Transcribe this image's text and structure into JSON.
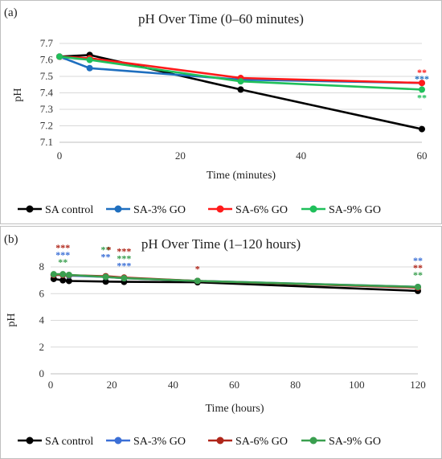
{
  "chart_data": [
    {
      "panel": "(a)",
      "type": "line",
      "title": "pH Over Time (0–60 minutes)",
      "xlabel": "Time (minutes)",
      "ylabel": "pH",
      "xlim": [
        0,
        60
      ],
      "ylim": [
        7.1,
        7.7
      ],
      "xticks": [
        0,
        20,
        40,
        60
      ],
      "yticks": [
        7.1,
        7.2,
        7.3,
        7.4,
        7.5,
        7.6,
        7.7
      ],
      "grid": "horizontal",
      "legend_position": "bottom",
      "series": [
        {
          "name": "SA control",
          "color": "#000000",
          "x": [
            0,
            5,
            30,
            60
          ],
          "y": [
            7.62,
            7.63,
            7.42,
            7.18
          ]
        },
        {
          "name": "SA-3% GO",
          "color": "#1f6fbf",
          "x": [
            0,
            5,
            30,
            60
          ],
          "y": [
            7.62,
            7.55,
            7.48,
            7.46
          ]
        },
        {
          "name": "SA-6% GO",
          "color": "#ff1a1a",
          "x": [
            0,
            5,
            30,
            60
          ],
          "y": [
            7.62,
            7.61,
            7.49,
            7.46
          ]
        },
        {
          "name": "SA-9% GO",
          "color": "#1fbf5a",
          "x": [
            0,
            5,
            30,
            60
          ],
          "y": [
            7.62,
            7.6,
            7.47,
            7.42
          ]
        }
      ],
      "annotations": [
        {
          "x": 60,
          "y": 7.46,
          "text": "**",
          "color": "#ff1a1a",
          "row": 0
        },
        {
          "x": 60,
          "y": 7.46,
          "text": "***",
          "color": "#1f6fbf",
          "row": 1
        },
        {
          "x": 60,
          "y": 7.42,
          "text": "**",
          "color": "#1fbf5a",
          "row": -1
        }
      ]
    },
    {
      "panel": "(b)",
      "type": "line",
      "title": "pH Over Time (1–120 hours)",
      "xlabel": "Time (hours)",
      "ylabel": "pH",
      "xlim": [
        0,
        120
      ],
      "ylim": [
        0,
        8
      ],
      "xticks": [
        0,
        20,
        40,
        60,
        80,
        100,
        120
      ],
      "yticks": [
        0,
        2,
        4,
        6,
        8
      ],
      "grid": "horizontal",
      "legend_position": "bottom",
      "series": [
        {
          "name": "SA control",
          "color": "#000000",
          "x": [
            1,
            4,
            6,
            18,
            24,
            48,
            120
          ],
          "y": [
            7.1,
            7.0,
            6.95,
            6.9,
            6.88,
            6.85,
            6.2
          ]
        },
        {
          "name": "SA-3% GO",
          "color": "#3b6fd6",
          "x": [
            1,
            4,
            6,
            18,
            24,
            48,
            120
          ],
          "y": [
            7.4,
            7.4,
            7.35,
            7.25,
            7.15,
            6.95,
            6.5
          ]
        },
        {
          "name": "SA-6% GO",
          "color": "#b0261a",
          "x": [
            1,
            4,
            6,
            18,
            24,
            48,
            120
          ],
          "y": [
            7.4,
            7.4,
            7.38,
            7.3,
            7.2,
            6.95,
            6.45
          ]
        },
        {
          "name": "SA-9% GO",
          "color": "#3a9f4f",
          "x": [
            1,
            4,
            6,
            18,
            24,
            48,
            120
          ],
          "y": [
            7.45,
            7.45,
            7.4,
            7.25,
            7.15,
            6.95,
            6.5
          ]
        }
      ],
      "annotations": [
        {
          "x": 4,
          "y": 7.45,
          "text": "***",
          "color": "#b0261a",
          "row": 3
        },
        {
          "x": 4,
          "y": 7.45,
          "text": "***",
          "color": "#3b6fd6",
          "row": 2
        },
        {
          "x": 4,
          "y": 7.45,
          "text": "**",
          "color": "#3a9f4f",
          "row": 1
        },
        {
          "x": 18,
          "y": 7.3,
          "text": "**",
          "color": "#3a9f4f",
          "row": 3
        },
        {
          "x": 18,
          "y": 7.3,
          "text": "*",
          "color": "#b0261a",
          "row": 3,
          "dx": 4
        },
        {
          "x": 18,
          "y": 7.3,
          "text": "**",
          "color": "#3b6fd6",
          "row": 2
        },
        {
          "x": 24,
          "y": 7.2,
          "text": "***",
          "color": "#b0261a",
          "row": 3
        },
        {
          "x": 24,
          "y": 7.2,
          "text": "***",
          "color": "#3a9f4f",
          "row": 2
        },
        {
          "x": 24,
          "y": 7.2,
          "text": "***",
          "color": "#3b6fd6",
          "row": 1
        },
        {
          "x": 48,
          "y": 6.95,
          "text": "*",
          "color": "#b0261a",
          "row": 1
        },
        {
          "x": 120,
          "y": 6.5,
          "text": "**",
          "color": "#3b6fd6",
          "row": 3
        },
        {
          "x": 120,
          "y": 6.5,
          "text": "**",
          "color": "#b0261a",
          "row": 2
        },
        {
          "x": 120,
          "y": 6.5,
          "text": "**",
          "color": "#3a9f4f",
          "row": 1
        }
      ]
    }
  ]
}
